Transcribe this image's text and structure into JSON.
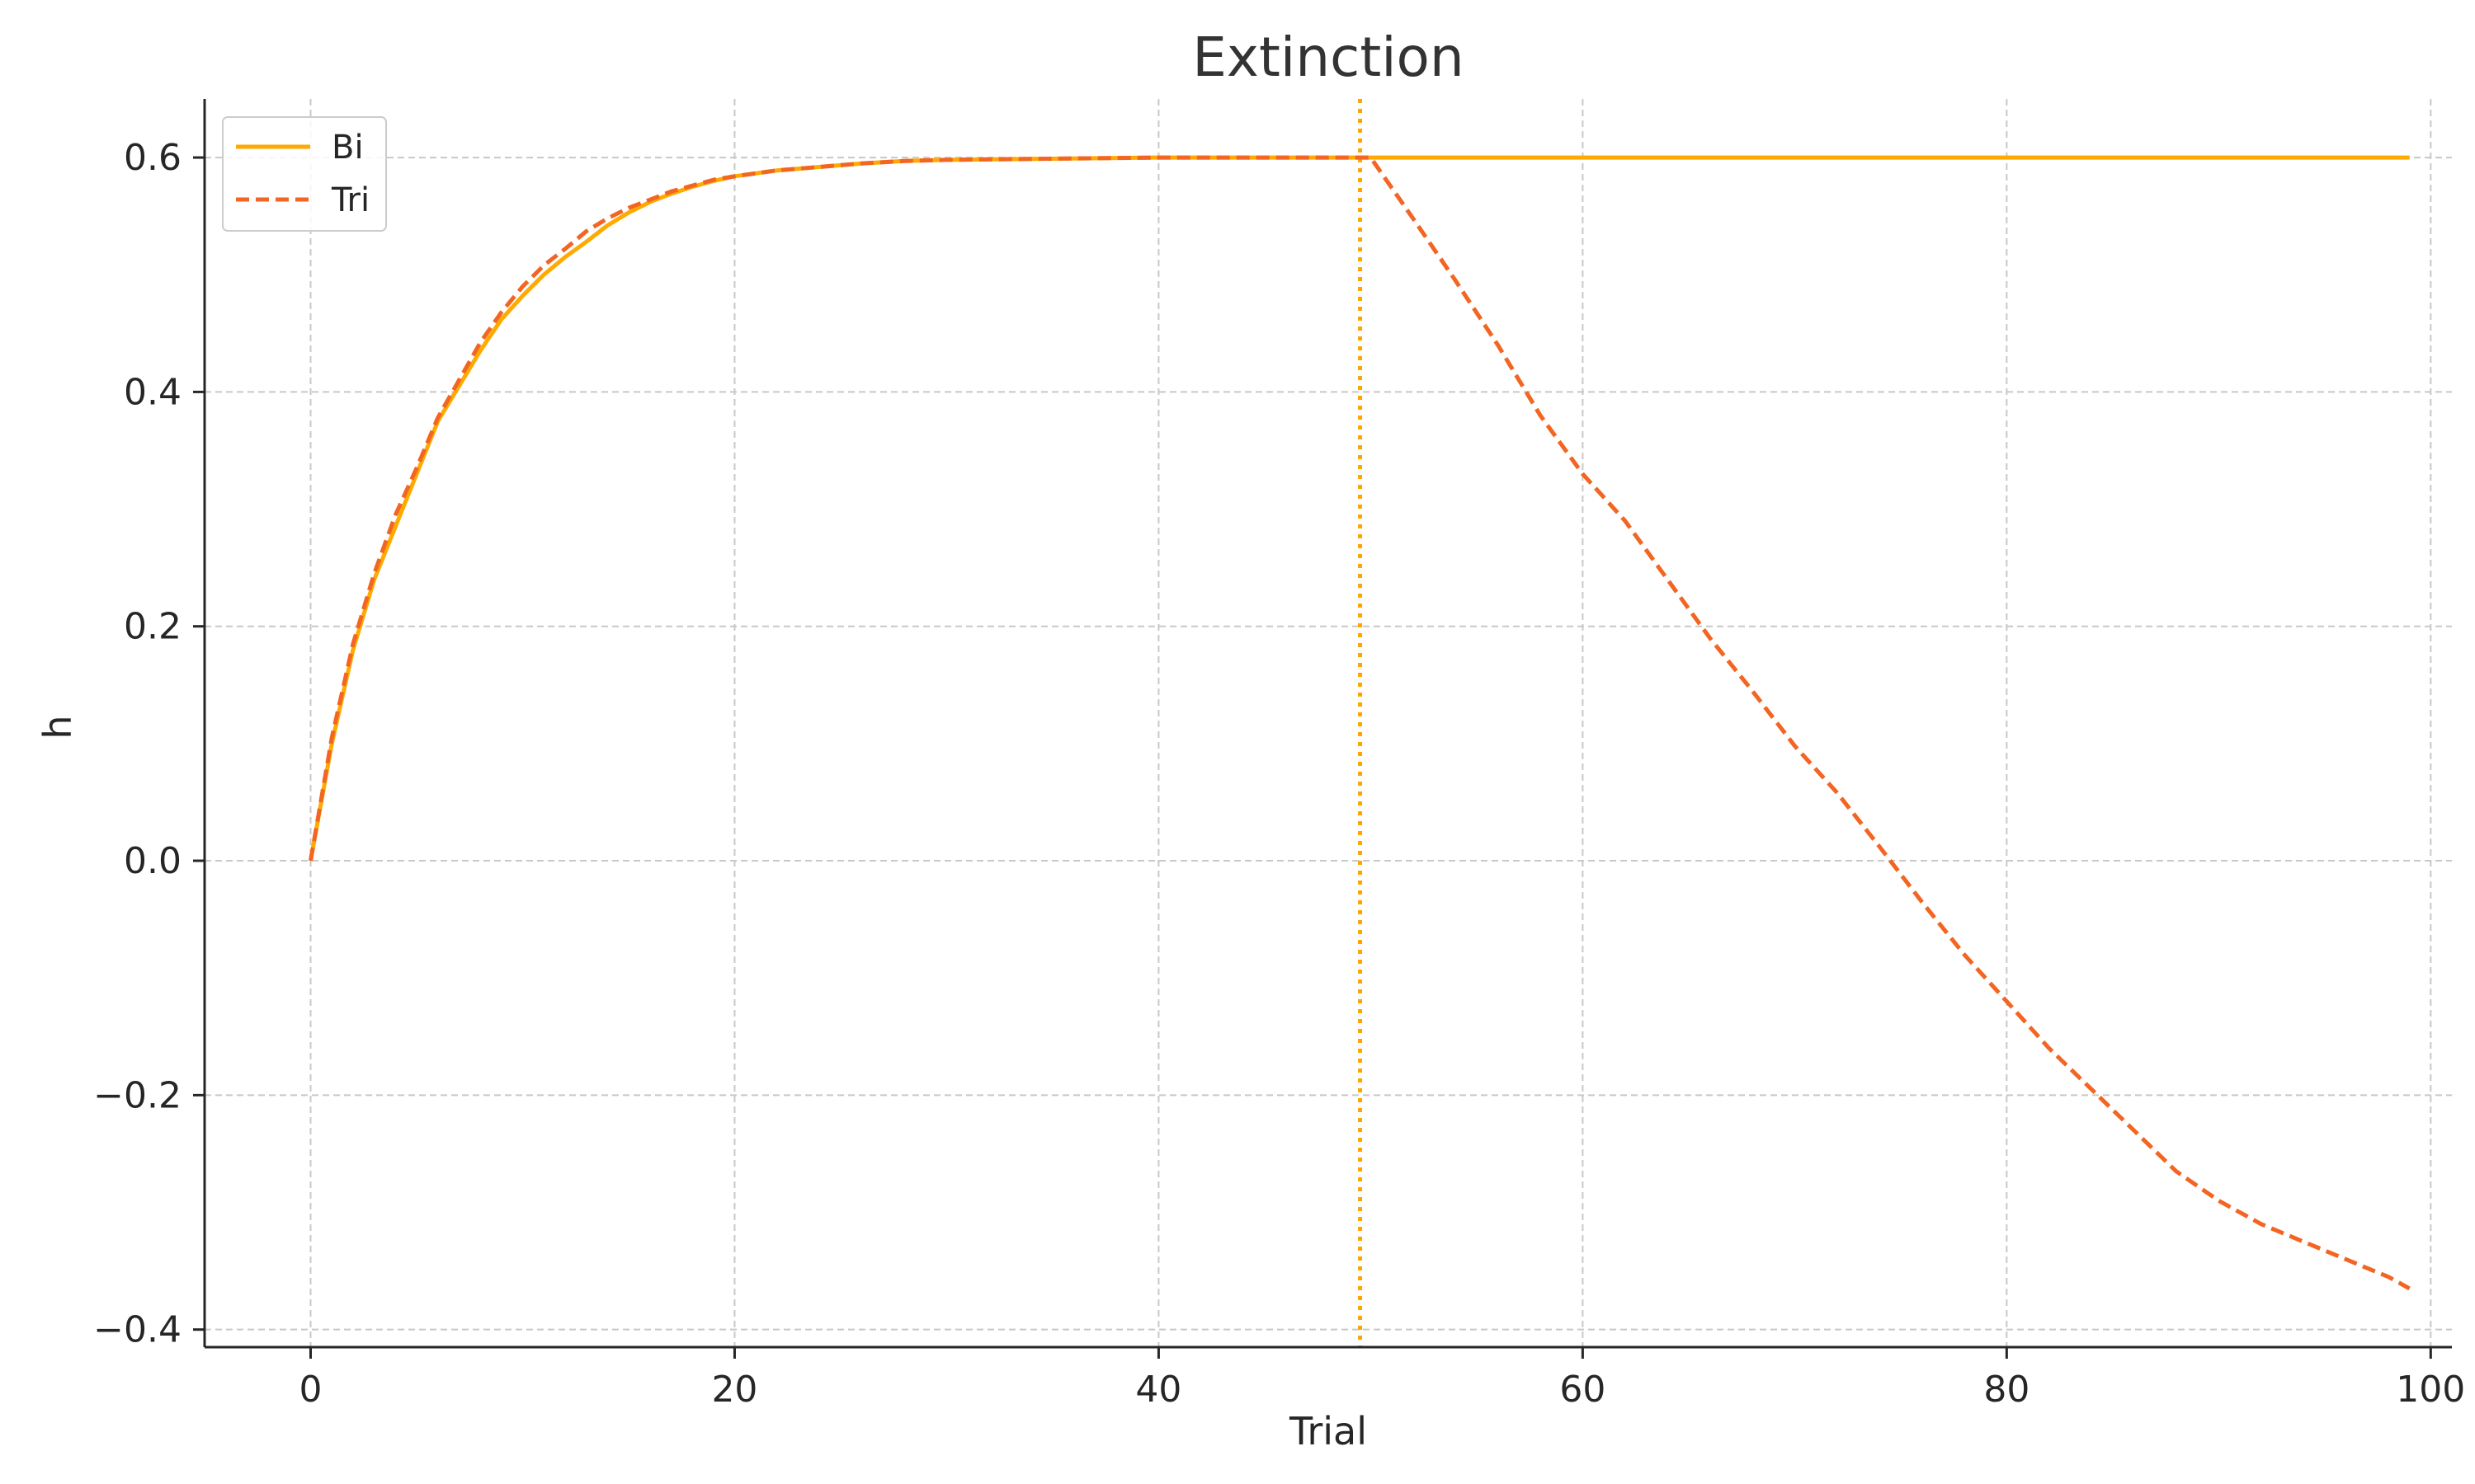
{
  "chart_data": {
    "type": "line",
    "title": "Extinction",
    "xlabel": "Trial",
    "ylabel": "h",
    "xlim": [
      -5,
      101
    ],
    "ylim": [
      -0.415,
      0.65
    ],
    "xticks": [
      0,
      20,
      40,
      60,
      80,
      100
    ],
    "yticks": [
      -0.4,
      -0.2,
      0.0,
      0.2,
      0.4,
      0.6
    ],
    "xtick_labels": [
      "0",
      "20",
      "40",
      "60",
      "80",
      "100"
    ],
    "ytick_labels": [
      "−0.4",
      "−0.2",
      "0.0",
      "0.2",
      "0.4",
      "0.6"
    ],
    "grid": true,
    "legend_position": "upper-left",
    "vline": {
      "x": 49.5,
      "color": "#FFA500",
      "style": "dotted"
    },
    "series": [
      {
        "name": "Bi",
        "color": "#FFAA00",
        "style": "solid",
        "x": [
          0,
          1,
          2,
          3,
          4,
          5,
          6,
          7,
          8,
          9,
          10,
          11,
          12,
          13,
          14,
          15,
          16,
          17,
          18,
          19,
          20,
          22,
          24,
          26,
          28,
          30,
          35,
          40,
          45,
          49,
          50,
          55,
          60,
          65,
          70,
          75,
          80,
          85,
          90,
          95,
          99
        ],
        "y": [
          0,
          0.1,
          0.18,
          0.24,
          0.285,
          0.33,
          0.375,
          0.405,
          0.435,
          0.462,
          0.482,
          0.5,
          0.515,
          0.528,
          0.542,
          0.553,
          0.562,
          0.569,
          0.575,
          0.58,
          0.584,
          0.589,
          0.592,
          0.595,
          0.597,
          0.598,
          0.599,
          0.6,
          0.6,
          0.6,
          0.6,
          0.6,
          0.6,
          0.6,
          0.6,
          0.6,
          0.6,
          0.6,
          0.6,
          0.6,
          0.6
        ]
      },
      {
        "name": "Tri",
        "color": "#F26522",
        "style": "dashed",
        "x": [
          0,
          1,
          2,
          3,
          4,
          5,
          6,
          7,
          8,
          9,
          10,
          11,
          12,
          13,
          14,
          15,
          16,
          17,
          18,
          19,
          20,
          22,
          24,
          26,
          28,
          30,
          35,
          40,
          45,
          49,
          50,
          52,
          54,
          56,
          58,
          60,
          62,
          64,
          66,
          68,
          70,
          72,
          74,
          76,
          78,
          80,
          82,
          84,
          86,
          88,
          90,
          92,
          94,
          96,
          98,
          99
        ],
        "y": [
          0,
          0.105,
          0.185,
          0.245,
          0.295,
          0.335,
          0.378,
          0.41,
          0.442,
          0.468,
          0.49,
          0.508,
          0.522,
          0.537,
          0.548,
          0.557,
          0.564,
          0.571,
          0.576,
          0.581,
          0.584,
          0.589,
          0.592,
          0.595,
          0.597,
          0.598,
          0.599,
          0.6,
          0.6,
          0.6,
          0.6,
          0.548,
          0.495,
          0.44,
          0.38,
          0.33,
          0.29,
          0.24,
          0.19,
          0.145,
          0.098,
          0.058,
          0.012,
          -0.035,
          -0.08,
          -0.12,
          -0.16,
          -0.195,
          -0.23,
          -0.265,
          -0.29,
          -0.31,
          -0.325,
          -0.34,
          -0.355,
          -0.365
        ]
      }
    ]
  }
}
